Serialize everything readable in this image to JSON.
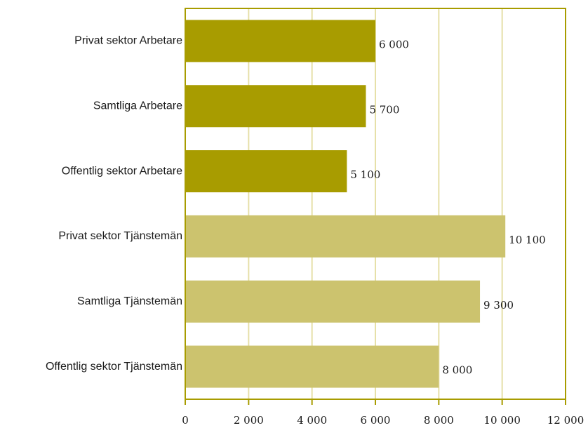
{
  "chart_data": {
    "type": "bar",
    "orientation": "horizontal",
    "categories": [
      "Privat sektor Arbetare",
      "Samtliga Arbetare",
      "Offentlig sektor Arbetare",
      "Privat sektor Tjänstemän",
      "Samtliga Tjänstemän",
      "Offentlig sektor Tjänstemän"
    ],
    "values": [
      6000,
      5700,
      5100,
      10100,
      9300,
      8000
    ],
    "value_labels": [
      "6 000",
      "5 700",
      "5 100",
      "10 100",
      "9 300",
      "8 000"
    ],
    "bar_colors": [
      "#a89c00",
      "#a89c00",
      "#a89c00",
      "#ccc36e",
      "#ccc36e",
      "#ccc36e"
    ],
    "xlim": [
      0,
      12000
    ],
    "xticks": [
      0,
      2000,
      4000,
      6000,
      8000,
      10000,
      12000
    ],
    "xtick_labels": [
      "0",
      "2 000",
      "4 000",
      "6 000",
      "8 000",
      "10 000",
      "12 000"
    ],
    "grid": true,
    "gridline_color": "#e6e0a8",
    "axis_color": "#a89c00",
    "title": "",
    "xlabel": "",
    "ylabel": ""
  }
}
